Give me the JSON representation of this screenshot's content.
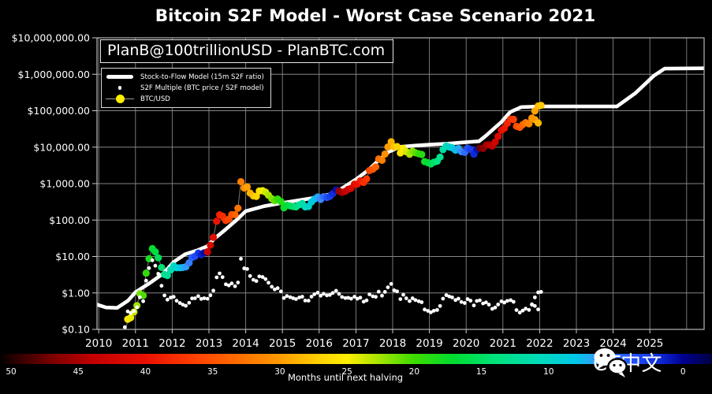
{
  "title": "Bitcoin S2F Model - Worst Case Scenario 2021",
  "annotation": "PlanB@100trillionUSD - PlanBTC.com",
  "watermark_text": "CT中文",
  "legend": {
    "items": [
      {
        "label": "Stock-to-Flow Model (15m S2F ratio)",
        "marker": "thick-line",
        "color": "#ffffff"
      },
      {
        "label": "S2F Multiple (BTC price / S2F model)",
        "marker": "small-dot",
        "color": "#ffffff"
      },
      {
        "label": "BTC/USD",
        "marker": "large-dot",
        "color": "#ffef00"
      }
    ]
  },
  "chart_data": {
    "type": "line+scatter",
    "title": "Bitcoin S2F Model - Worst Case Scenario 2021",
    "x_axis": {
      "ticks": [
        2010,
        2011,
        2012,
        2013,
        2014,
        2015,
        2016,
        2017,
        2018,
        2019,
        2020,
        2021,
        2022,
        2023,
        2024,
        2025
      ],
      "range": [
        2009.95,
        2026.5
      ],
      "grid": true
    },
    "y_axis": {
      "scale": "log",
      "range": [
        0.1,
        10000000
      ],
      "grid": true,
      "ticks": [
        {
          "label": "$10,000,000.00",
          "value": 10000000
        },
        {
          "label": "$1,000,000.00",
          "value": 1000000
        },
        {
          "label": "$100,000.00",
          "value": 100000
        },
        {
          "label": "$10,000.00",
          "value": 10000
        },
        {
          "label": "$1,000.00",
          "value": 1000
        },
        {
          "label": "$100.00",
          "value": 100
        },
        {
          "label": "$10.00",
          "value": 10
        },
        {
          "label": "$1.00",
          "value": 1
        },
        {
          "label": "$0.10",
          "value": 0.1
        }
      ]
    },
    "halvings": [
      2012.907,
      2016.523,
      2020.36,
      2024.33
    ],
    "months_color_stops": [
      [
        0,
        "#000090"
      ],
      [
        2,
        "#1030e0"
      ],
      [
        4,
        "#2255ff"
      ],
      [
        6,
        "#3f90ff"
      ],
      [
        8,
        "#00c8e8"
      ],
      [
        11,
        "#00dcb4"
      ],
      [
        14,
        "#00e27a"
      ],
      [
        17,
        "#00dc32"
      ],
      [
        20,
        "#3cdc00"
      ],
      [
        23,
        "#b4e600"
      ],
      [
        25,
        "#ffee00"
      ],
      [
        27,
        "#ffd200"
      ],
      [
        30,
        "#ff9b00"
      ],
      [
        33,
        "#ff6e00"
      ],
      [
        36,
        "#ff4400"
      ],
      [
        40,
        "#ea1000"
      ],
      [
        44,
        "#c00000"
      ],
      [
        47,
        "#7a0000"
      ],
      [
        50,
        "#200000"
      ]
    ],
    "colorbar": {
      "label": "Months until next halving",
      "ticks": [
        50,
        45,
        40,
        35,
        30,
        25,
        20,
        15,
        10,
        5,
        0
      ],
      "min": 0,
      "max": 50
    },
    "series": [
      {
        "name": "Stock-to-Flow Model (15m S2F ratio)",
        "type": "line",
        "color": "#ffffff",
        "points": [
          [
            2009.95,
            0.48
          ],
          [
            2010.2,
            0.4
          ],
          [
            2010.5,
            0.39
          ],
          [
            2010.8,
            0.62
          ],
          [
            2011.0,
            1.05
          ],
          [
            2011.4,
            1.9
          ],
          [
            2011.75,
            3.4
          ],
          [
            2012.05,
            7.2
          ],
          [
            2012.35,
            11.5
          ],
          [
            2012.7,
            15
          ],
          [
            2012.95,
            19
          ],
          [
            2013.15,
            31
          ],
          [
            2013.45,
            55
          ],
          [
            2013.75,
            100
          ],
          [
            2014.0,
            175
          ],
          [
            2014.5,
            240
          ],
          [
            2015.0,
            295
          ],
          [
            2015.5,
            355
          ],
          [
            2016.0,
            430
          ],
          [
            2016.4,
            540
          ],
          [
            2016.7,
            830
          ],
          [
            2017.0,
            1300
          ],
          [
            2017.35,
            2400
          ],
          [
            2017.6,
            4200
          ],
          [
            2017.9,
            7500
          ],
          [
            2018.2,
            10200
          ],
          [
            2018.6,
            11000
          ],
          [
            2019.0,
            11700
          ],
          [
            2019.5,
            12500
          ],
          [
            2020.0,
            13700
          ],
          [
            2020.35,
            14500
          ],
          [
            2020.55,
            21000
          ],
          [
            2020.75,
            32000
          ],
          [
            2020.95,
            48000
          ],
          [
            2021.2,
            92000
          ],
          [
            2021.5,
            126000
          ],
          [
            2022.0,
            131000
          ],
          [
            2024.1,
            131000
          ],
          [
            2024.6,
            300000
          ],
          [
            2025.1,
            900000
          ],
          [
            2025.4,
            1430000
          ],
          [
            2026.5,
            1460000
          ]
        ]
      },
      {
        "name": "BTC/USD",
        "type": "scatter",
        "color": "by_months_until_halving",
        "points": [
          [
            2010.71,
            0.062
          ],
          [
            2010.79,
            0.19
          ],
          [
            2010.87,
            0.21
          ],
          [
            2010.96,
            0.3
          ],
          [
            2011.04,
            0.45
          ],
          [
            2011.12,
            0.95
          ],
          [
            2011.21,
            0.85
          ],
          [
            2011.29,
            3.5
          ],
          [
            2011.37,
            8.7
          ],
          [
            2011.46,
            16.5
          ],
          [
            2011.54,
            13.4
          ],
          [
            2011.62,
            9.2
          ],
          [
            2011.71,
            5.0
          ],
          [
            2011.79,
            3.2
          ],
          [
            2011.87,
            3.0
          ],
          [
            2011.96,
            4.3
          ],
          [
            2012.04,
            5.5
          ],
          [
            2012.12,
            4.9
          ],
          [
            2012.21,
            4.9
          ],
          [
            2012.29,
            5.0
          ],
          [
            2012.37,
            5.2
          ],
          [
            2012.46,
            6.7
          ],
          [
            2012.54,
            9.4
          ],
          [
            2012.62,
            10.1
          ],
          [
            2012.71,
            12.4
          ],
          [
            2012.79,
            11.2
          ],
          [
            2012.87,
            12.6
          ],
          [
            2012.96,
            13.5
          ],
          [
            2013.04,
            20.4
          ],
          [
            2013.12,
            33.4
          ],
          [
            2013.21,
            93
          ],
          [
            2013.29,
            139
          ],
          [
            2013.37,
            128
          ],
          [
            2013.46,
            97
          ],
          [
            2013.54,
            106
          ],
          [
            2013.62,
            141
          ],
          [
            2013.71,
            141
          ],
          [
            2013.79,
            211
          ],
          [
            2013.87,
            1130
          ],
          [
            2013.96,
            755
          ],
          [
            2014.04,
            815
          ],
          [
            2014.12,
            550
          ],
          [
            2014.21,
            458
          ],
          [
            2014.29,
            446
          ],
          [
            2014.37,
            628
          ],
          [
            2014.46,
            640
          ],
          [
            2014.54,
            585
          ],
          [
            2014.62,
            481
          ],
          [
            2014.71,
            387
          ],
          [
            2014.79,
            338
          ],
          [
            2014.87,
            378
          ],
          [
            2014.96,
            320
          ],
          [
            2015.04,
            217
          ],
          [
            2015.12,
            254
          ],
          [
            2015.21,
            244
          ],
          [
            2015.29,
            236
          ],
          [
            2015.37,
            230
          ],
          [
            2015.46,
            263
          ],
          [
            2015.54,
            284
          ],
          [
            2015.62,
            230
          ],
          [
            2015.71,
            236
          ],
          [
            2015.79,
            314
          ],
          [
            2015.87,
            377
          ],
          [
            2015.96,
            430
          ],
          [
            2016.04,
            369
          ],
          [
            2016.12,
            437
          ],
          [
            2016.21,
            416
          ],
          [
            2016.29,
            448
          ],
          [
            2016.37,
            531
          ],
          [
            2016.46,
            672
          ],
          [
            2016.54,
            624
          ],
          [
            2016.62,
            574
          ],
          [
            2016.71,
            610
          ],
          [
            2016.79,
            700
          ],
          [
            2016.87,
            745
          ],
          [
            2016.96,
            963
          ],
          [
            2017.04,
            970
          ],
          [
            2017.12,
            1190
          ],
          [
            2017.21,
            1080
          ],
          [
            2017.29,
            1350
          ],
          [
            2017.37,
            2290
          ],
          [
            2017.46,
            2480
          ],
          [
            2017.54,
            2875
          ],
          [
            2017.62,
            4735
          ],
          [
            2017.71,
            4360
          ],
          [
            2017.79,
            6470
          ],
          [
            2017.87,
            10100
          ],
          [
            2017.96,
            14100
          ],
          [
            2018.04,
            10200
          ],
          [
            2018.12,
            10400
          ],
          [
            2018.21,
            6940
          ],
          [
            2018.29,
            9240
          ],
          [
            2018.37,
            7500
          ],
          [
            2018.46,
            6400
          ],
          [
            2018.54,
            7750
          ],
          [
            2018.62,
            7010
          ],
          [
            2018.71,
            6600
          ],
          [
            2018.79,
            6300
          ],
          [
            2018.87,
            4020
          ],
          [
            2018.96,
            3740
          ],
          [
            2019.04,
            3460
          ],
          [
            2019.12,
            3850
          ],
          [
            2019.21,
            4100
          ],
          [
            2019.29,
            5320
          ],
          [
            2019.37,
            8560
          ],
          [
            2019.46,
            10820
          ],
          [
            2019.54,
            10080
          ],
          [
            2019.62,
            9630
          ],
          [
            2019.71,
            8300
          ],
          [
            2019.79,
            9150
          ],
          [
            2019.87,
            7550
          ],
          [
            2019.96,
            7190
          ],
          [
            2020.04,
            9350
          ],
          [
            2020.12,
            8600
          ],
          [
            2020.21,
            6440
          ],
          [
            2020.29,
            8630
          ],
          [
            2020.37,
            9450
          ],
          [
            2020.46,
            9140
          ],
          [
            2020.54,
            11350
          ],
          [
            2020.62,
            11650
          ],
          [
            2020.71,
            10780
          ],
          [
            2020.79,
            13800
          ],
          [
            2020.87,
            19700
          ],
          [
            2020.96,
            29000
          ],
          [
            2021.04,
            33100
          ],
          [
            2021.12,
            45200
          ],
          [
            2021.21,
            58800
          ],
          [
            2021.29,
            57750
          ],
          [
            2021.37,
            37300
          ],
          [
            2021.46,
            35000
          ],
          [
            2021.54,
            41500
          ],
          [
            2021.62,
            47100
          ],
          [
            2021.71,
            43800
          ],
          [
            2021.79,
            61300
          ],
          [
            2021.87,
            57000
          ],
          [
            2021.96,
            46200
          ]
        ]
      },
      {
        "name": "BTC/USD worst case scenario 2021",
        "type": "scatter",
        "color": "by_months_until_halving",
        "points": [
          [
            2021.79,
            63000
          ],
          [
            2021.87,
            98000
          ],
          [
            2021.96,
            135000
          ],
          [
            2022.04,
            140000
          ]
        ]
      },
      {
        "name": "S2F Multiple (BTC price / S2F model)",
        "type": "scatter",
        "color": "#ffffff",
        "computed": "multiple = BTC price divided by S2F model value, plotted on the same log dollar axis"
      }
    ]
  }
}
